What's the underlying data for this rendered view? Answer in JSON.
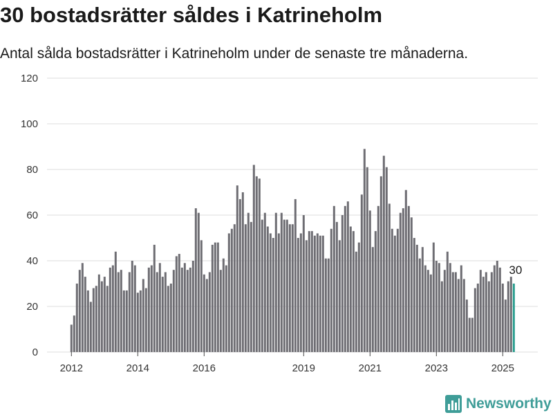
{
  "title": "30 bostadsrätter såldes i Katrineholm",
  "subtitle": "Antal sålda bostadsrätter i Katrineholm under de senaste tre månaderna.",
  "colors": {
    "bar": "#6e6d73",
    "highlight": "#2a9d8f",
    "grid": "#dcdcdc",
    "brand": "#3f9d98"
  },
  "brand": {
    "name": "Newsworthy",
    "icon": "newsworthy-bar-chart-icon"
  },
  "chart_data": {
    "type": "bar",
    "title": "30 bostadsrätter såldes i Katrineholm",
    "xlabel": "",
    "ylabel": "",
    "ylim": [
      0,
      120
    ],
    "yticks": [
      0,
      20,
      40,
      60,
      80,
      100,
      120
    ],
    "xticks": [
      "2012",
      "2014",
      "2016",
      "2019",
      "2021",
      "2023",
      "2025"
    ],
    "x_start": "2012-01",
    "frequency": "monthly",
    "annotation": "30",
    "values": [
      12,
      16,
      30,
      36,
      39,
      33,
      27,
      22,
      28,
      29,
      34,
      31,
      33,
      29,
      37,
      38,
      44,
      35,
      36,
      27,
      27,
      35,
      40,
      38,
      26,
      27,
      32,
      28,
      37,
      38,
      47,
      35,
      39,
      33,
      35,
      29,
      30,
      36,
      42,
      43,
      37,
      39,
      36,
      37,
      40,
      63,
      61,
      49,
      34,
      32,
      35,
      47,
      48,
      48,
      36,
      41,
      38,
      52,
      54,
      56,
      73,
      67,
      70,
      56,
      61,
      57,
      82,
      77,
      76,
      58,
      61,
      55,
      52,
      50,
      61,
      52,
      61,
      58,
      58,
      56,
      56,
      67,
      50,
      52,
      60,
      49,
      53,
      53,
      51,
      52,
      51,
      51,
      41,
      41,
      54,
      64,
      57,
      49,
      60,
      64,
      66,
      55,
      53,
      44,
      48,
      69,
      89,
      81,
      62,
      46,
      53,
      64,
      77,
      86,
      81,
      65,
      54,
      51,
      54,
      61,
      63,
      71,
      64,
      59,
      50,
      47,
      41,
      46,
      38,
      36,
      34,
      48,
      40,
      39,
      31,
      36,
      44,
      39,
      35,
      35,
      32,
      38,
      32,
      23,
      15,
      15,
      28,
      30,
      36,
      33,
      35,
      31,
      35,
      38,
      40,
      37,
      30,
      23,
      31,
      33,
      30
    ]
  }
}
